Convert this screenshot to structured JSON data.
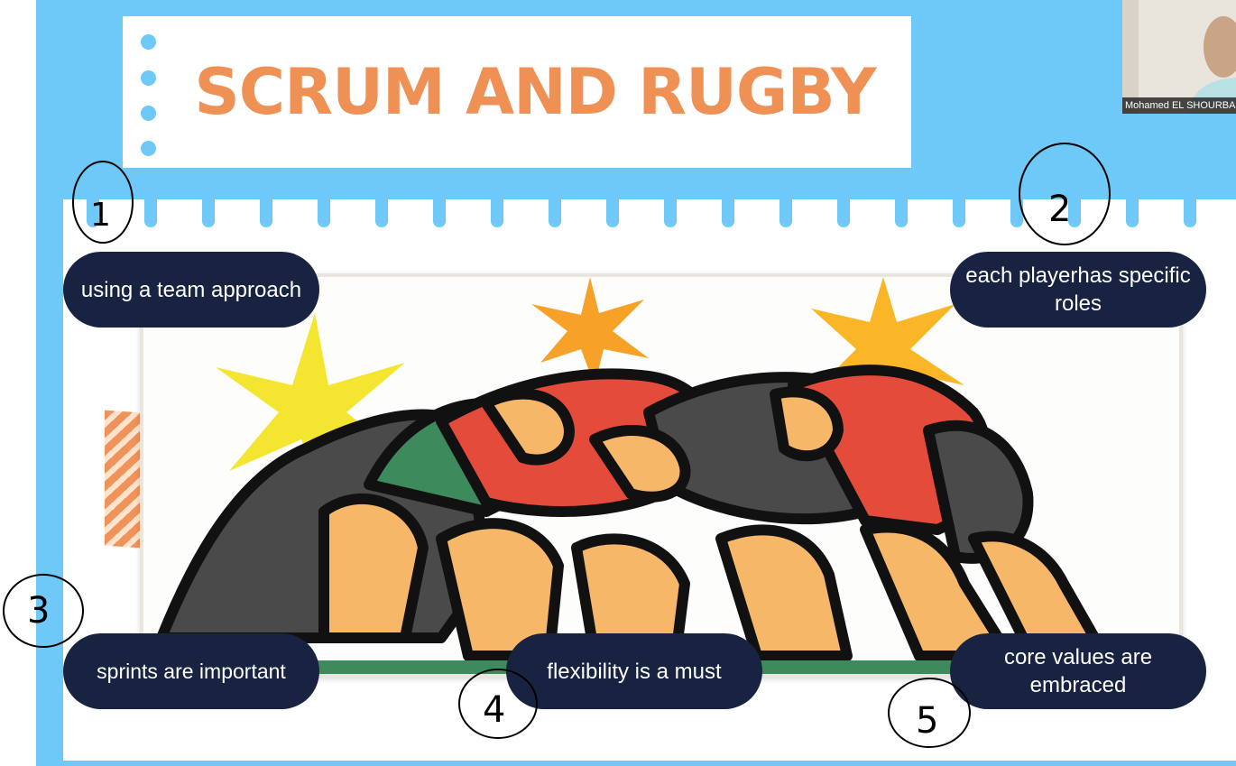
{
  "slide": {
    "title": "SCRUM AND RUGBY",
    "points": [
      {
        "number": "1",
        "label": "using a team approach"
      },
      {
        "number": "2",
        "label": "each playerhas specific roles"
      },
      {
        "number": "3",
        "label": "sprints are important"
      },
      {
        "number": "4",
        "label": "flexibility is a must"
      },
      {
        "number": "5",
        "label": "core values are embraced"
      }
    ],
    "colors": {
      "background": "#6ec9f9",
      "title": "#ef9055",
      "pill": "#182341"
    }
  },
  "webcam": {
    "participant_name": "Mohamed EL SHOURBAGY"
  }
}
